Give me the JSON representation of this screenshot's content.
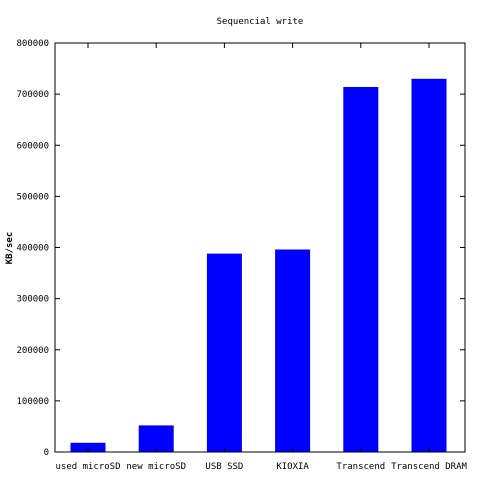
{
  "chart_data": {
    "type": "bar",
    "title": "Sequencial write",
    "xlabel": "",
    "ylabel": "KB/sec",
    "categories": [
      "used microSD",
      "new microSD",
      "USB SSD",
      "KIOXIA",
      "Transcend",
      "Transcend DRAM"
    ],
    "values": [
      18000,
      52000,
      388000,
      396000,
      714000,
      730000
    ],
    "ylim": [
      0,
      800000
    ],
    "yticks": [
      "0",
      "100000",
      "200000",
      "300000",
      "400000",
      "500000",
      "600000",
      "700000",
      "800000"
    ],
    "grid": false,
    "legend": "none",
    "bar_color": "#0000ff"
  }
}
